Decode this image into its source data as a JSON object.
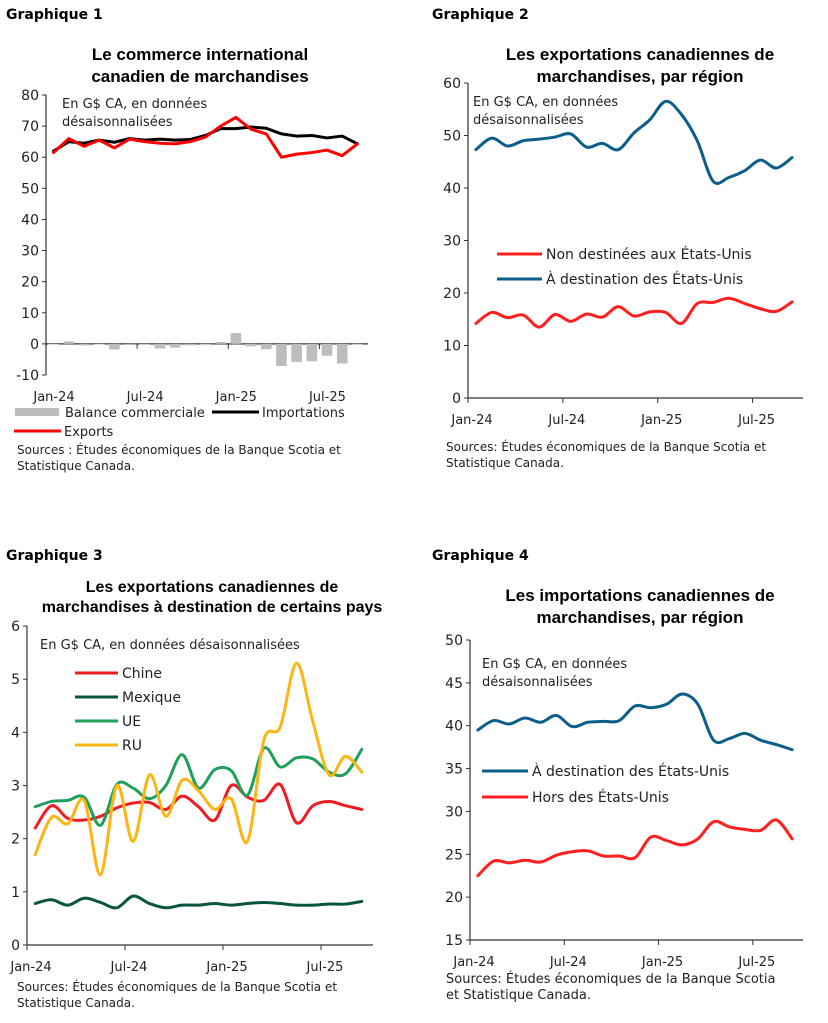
{
  "charts": [
    {
      "label": "Graphique 1",
      "title_lines": [
        "Le commerce international",
        "canadien de marchandises"
      ],
      "unit_lines": [
        "En G$ CA, en données",
        "désaisonnalisées"
      ],
      "sources_lines": [
        "Sources : Études économiques de la Banque Scotia et",
        "Statistique Canada."
      ]
    },
    {
      "label": "Graphique 2",
      "title_lines": [
        "Les exportations canadiennes de",
        "marchandises, par région"
      ],
      "unit_lines": [
        "En G$ CA, en données",
        "désaisonnalisées"
      ],
      "sources_lines": [
        "Sources: Études économiques de la Banque Scotia et",
        "Statistique Canada."
      ]
    },
    {
      "label": "Graphique 3",
      "title_lines": [
        "Les exportations canadiennes de",
        "marchandises à destination de certains pays"
      ],
      "unit_lines": [
        "En G$ CA, en données désaisonnalisées"
      ],
      "sources_lines": [
        "Sources: Études économiques de la Banque Scotia et",
        "Statistique Canada."
      ]
    },
    {
      "label": "Graphique 4",
      "title_lines": [
        "Les importations canadiennes de",
        "marchandises, par région"
      ],
      "unit_lines": [
        "En G$ CA, en données",
        "désaisonnalisées"
      ],
      "sources_lines": [
        "Sources: Études économiques de la Banque Scotia",
        "et Statistique Canada."
      ]
    }
  ],
  "chart_data": [
    {
      "type": "line",
      "x": [
        "Jan-24",
        "Feb-24",
        "Mar-24",
        "Apr-24",
        "May-24",
        "Jun-24",
        "Jul-24",
        "Aug-24",
        "Sep-24",
        "Oct-24",
        "Nov-24",
        "Dec-24",
        "Jan-25",
        "Feb-25",
        "Mar-25",
        "Apr-25",
        "May-25",
        "Jun-25",
        "Jul-25",
        "Aug-25",
        "Sep-25"
      ],
      "xticks": [
        "Jan-24",
        "Jul-24",
        "Jan-25",
        "Jul-25"
      ],
      "ylim": [
        -10,
        80
      ],
      "yticks": [
        -10,
        0,
        10,
        20,
        30,
        40,
        50,
        60,
        70,
        80
      ],
      "smooth": false,
      "legend_placement": "bottom",
      "series": [
        {
          "name": "Balance commerciale",
          "kind": "bar",
          "color": "#bdbdbd",
          "values": [
            -0.2,
            0.8,
            -0.5,
            -0.2,
            -1.8,
            -0.4,
            0,
            -1.5,
            -1.2,
            -0.5,
            -0.3,
            0.6,
            3.5,
            -0.8,
            -1.7,
            -7.1,
            -5.8,
            -5.6,
            -3.8,
            -6.3,
            0
          ]
        },
        {
          "name": "Importations",
          "kind": "line",
          "color": "#000000",
          "values": [
            62,
            65,
            64.5,
            65.5,
            64.8,
            66,
            65.5,
            65.8,
            65.5,
            65.7,
            67,
            69.2,
            69.2,
            69.7,
            69.3,
            67.5,
            66.8,
            67,
            66.2,
            66.8,
            64.3
          ]
        },
        {
          "name": "Exports",
          "kind": "line",
          "color": "#ff0000",
          "values": [
            61.5,
            66,
            63.5,
            65.5,
            63,
            65.8,
            65,
            64.5,
            64.3,
            65,
            66.5,
            70,
            72.8,
            69,
            67.5,
            60,
            61,
            61.5,
            62.3,
            60.5,
            64.3
          ]
        }
      ]
    },
    {
      "type": "line",
      "x": [
        "Jan-24",
        "Feb-24",
        "Mar-24",
        "Apr-24",
        "May-24",
        "Jun-24",
        "Jul-24",
        "Aug-24",
        "Sep-24",
        "Oct-24",
        "Nov-24",
        "Dec-24",
        "Jan-25",
        "Feb-25",
        "Mar-25",
        "Apr-25",
        "May-25",
        "Jun-25",
        "Jul-25",
        "Aug-25",
        "Sep-25"
      ],
      "xticks": [
        "Jan-24",
        "Jul-24",
        "Jan-25",
        "Jul-25"
      ],
      "ylim": [
        0,
        60
      ],
      "yticks": [
        0,
        10,
        20,
        30,
        40,
        50,
        60
      ],
      "smooth": true,
      "legend_placement": "middle",
      "series": [
        {
          "name": "Non destinées aux États-Unis",
          "kind": "line",
          "color": "#ff1f1f",
          "values": [
            14.2,
            16.3,
            15.3,
            15.8,
            13.5,
            15.9,
            14.6,
            16,
            15.4,
            17.4,
            15.6,
            16.4,
            16.3,
            14.2,
            18,
            18.2,
            19,
            18,
            17,
            16.5,
            18.3
          ]
        },
        {
          "name": "À destination des États-Unis",
          "kind": "line",
          "color": "#0b5d8a",
          "values": [
            47.3,
            49.5,
            48,
            49,
            49.3,
            49.7,
            50.3,
            47.8,
            48.5,
            47.3,
            50.5,
            53,
            56.5,
            54,
            49,
            41.3,
            42,
            43.3,
            45.3,
            43.8,
            45.8
          ]
        }
      ]
    },
    {
      "type": "line",
      "x": [
        "Jan-24",
        "Feb-24",
        "Mar-24",
        "Apr-24",
        "May-24",
        "Jun-24",
        "Jul-24",
        "Aug-24",
        "Sep-24",
        "Oct-24",
        "Nov-24",
        "Dec-24",
        "Jan-25",
        "Feb-25",
        "Mar-25",
        "Apr-25",
        "May-25",
        "Jun-25",
        "Jul-25",
        "Aug-25",
        "Sep-25"
      ],
      "xticks": [
        "Jan-24",
        "Jul-24",
        "Jan-25",
        "Jul-25"
      ],
      "ylim": [
        0,
        6
      ],
      "yticks": [
        0,
        1,
        2,
        3,
        4,
        5,
        6
      ],
      "smooth": true,
      "legend_placement": "top-left",
      "series": [
        {
          "name": "Chine",
          "kind": "line",
          "color": "#ee1c25",
          "values": [
            2.2,
            2.62,
            2.38,
            2.35,
            2.42,
            2.58,
            2.67,
            2.68,
            2.55,
            2.8,
            2.6,
            2.35,
            3.0,
            2.78,
            2.72,
            3.02,
            2.3,
            2.62,
            2.7,
            2.62,
            2.55
          ]
        },
        {
          "name": "Mexique",
          "kind": "line",
          "color": "#0a5540",
          "values": [
            0.78,
            0.85,
            0.75,
            0.88,
            0.8,
            0.7,
            0.92,
            0.78,
            0.7,
            0.75,
            0.75,
            0.78,
            0.75,
            0.78,
            0.8,
            0.78,
            0.75,
            0.75,
            0.77,
            0.77,
            0.82
          ]
        },
        {
          "name": "UE",
          "kind": "line",
          "color": "#1fa05a",
          "values": [
            2.6,
            2.7,
            2.72,
            2.78,
            2.25,
            3.02,
            2.95,
            2.75,
            3.0,
            3.58,
            2.95,
            3.3,
            3.28,
            2.82,
            3.7,
            3.35,
            3.52,
            3.5,
            3.25,
            3.22,
            3.68
          ]
        },
        {
          "name": "RU",
          "kind": "line",
          "color": "#fbb616",
          "values": [
            1.7,
            2.4,
            2.28,
            2.72,
            1.32,
            3.0,
            1.95,
            3.2,
            2.42,
            3.1,
            2.9,
            2.55,
            2.75,
            1.95,
            3.85,
            4.1,
            5.3,
            4.2,
            3.2,
            3.55,
            3.25
          ]
        }
      ]
    },
    {
      "type": "line",
      "x": [
        "Jan-24",
        "Feb-24",
        "Mar-24",
        "Apr-24",
        "May-24",
        "Jun-24",
        "Jul-24",
        "Aug-24",
        "Sep-24",
        "Oct-24",
        "Nov-24",
        "Dec-24",
        "Jan-25",
        "Feb-25",
        "Mar-25",
        "Apr-25",
        "May-25",
        "Jun-25",
        "Jul-25",
        "Aug-25",
        "Sep-25"
      ],
      "xticks": [
        "Jan-24",
        "Jul-24",
        "Jan-25",
        "Jul-25"
      ],
      "ylim": [
        15,
        50
      ],
      "yticks": [
        15,
        20,
        25,
        30,
        35,
        40,
        45,
        50
      ],
      "smooth": true,
      "legend_placement": "middle",
      "series": [
        {
          "name": "À destination des États-Unis",
          "kind": "line",
          "color": "#0b5d8a",
          "values": [
            39.5,
            40.6,
            40.2,
            40.9,
            40.4,
            41.2,
            39.9,
            40.4,
            40.5,
            40.6,
            42.3,
            42.1,
            42.5,
            43.7,
            42.5,
            38.3,
            38.5,
            39.1,
            38.3,
            37.8,
            37.2
          ]
        },
        {
          "name": "Hors des États-Unis",
          "kind": "line",
          "color": "#ff1f1f",
          "values": [
            22.5,
            24.2,
            24.0,
            24.3,
            24.1,
            24.9,
            25.3,
            25.4,
            24.8,
            24.8,
            24.6,
            27,
            26.6,
            26.1,
            26.8,
            28.8,
            28.2,
            27.9,
            27.8,
            29,
            26.8
          ]
        }
      ]
    }
  ]
}
